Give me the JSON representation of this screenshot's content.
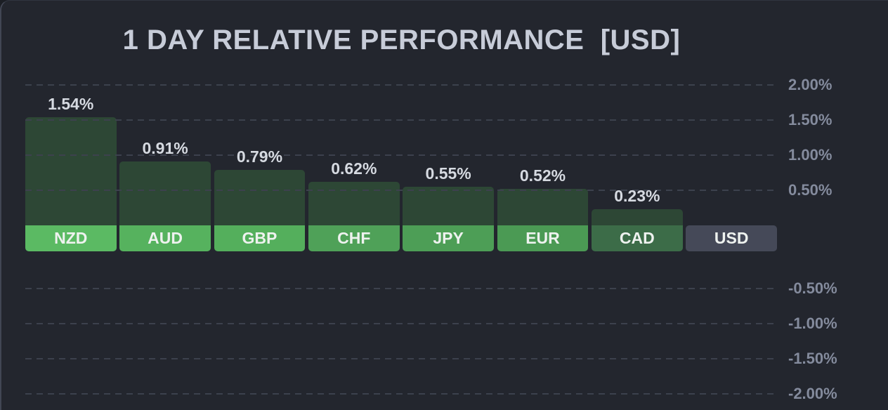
{
  "title": "1 DAY RELATIVE PERFORMANCE  [USD]",
  "chart_data": {
    "type": "bar",
    "title": "1 DAY RELATIVE PERFORMANCE [USD]",
    "categories": [
      "NZD",
      "AUD",
      "GBP",
      "CHF",
      "JPY",
      "EUR",
      "CAD",
      "USD"
    ],
    "values": [
      1.54,
      0.91,
      0.79,
      0.62,
      0.55,
      0.52,
      0.23,
      0.0
    ],
    "value_labels": [
      "1.54%",
      "0.91%",
      "0.79%",
      "0.62%",
      "0.55%",
      "0.52%",
      "0.23%",
      ""
    ],
    "badge_colors": [
      "#5bba63",
      "#56b25e",
      "#54af5c",
      "#4fa158",
      "#4d9e56",
      "#4b9a54",
      "#3c6c48",
      "#454958"
    ],
    "y_axis": {
      "side": "right",
      "ticks": [
        {
          "value": 2.0,
          "label": "2.00%"
        },
        {
          "value": 1.5,
          "label": "1.50%"
        },
        {
          "value": 1.0,
          "label": "1.00%"
        },
        {
          "value": 0.5,
          "label": "0.50%"
        },
        {
          "value": -0.5,
          "label": "-0.50%"
        },
        {
          "value": -1.0,
          "label": "-1.00%"
        },
        {
          "value": -1.5,
          "label": "-1.50%"
        },
        {
          "value": -2.0,
          "label": "-2.00%"
        }
      ],
      "ylim": [
        -2.3,
        2.3
      ],
      "grid": "dashed"
    },
    "legend": "none",
    "colors": {
      "background": "#23262e",
      "bar_fill": "#2d4735",
      "gridline": "#3c414d",
      "title_text": "#c7ccd8",
      "value_text": "#d6dae1",
      "tick_text": "#848b9d",
      "badge_text": "#eef2ef"
    }
  }
}
